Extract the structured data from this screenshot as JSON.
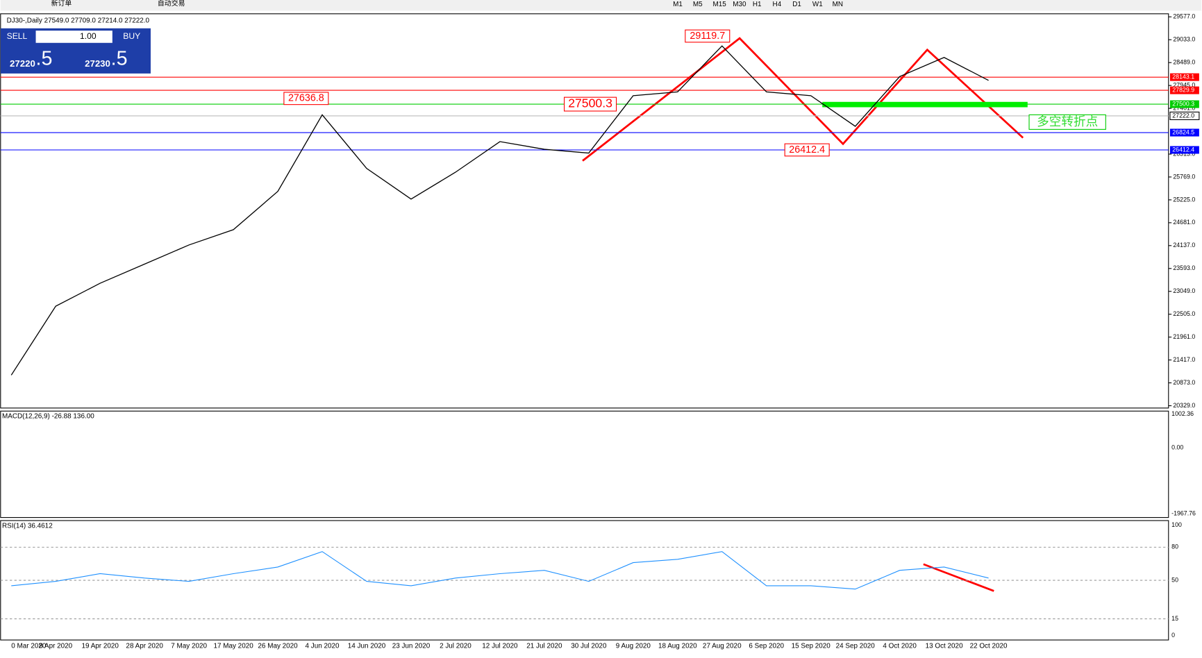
{
  "toolbar": {
    "new_order": "新订单",
    "auto_trading": "自动交易",
    "timeframes": [
      "M1",
      "M5",
      "M15",
      "M30",
      "H1",
      "H4",
      "D1",
      "W1",
      "MN"
    ]
  },
  "chart_header": "DJ30-,Daily  27549.0 27709.0 27214.0 27222.0",
  "trade_panel": {
    "sell": "SELL",
    "buy": "BUY",
    "lots": "1.00",
    "sell_price": "27220",
    "sell_pip": ".5",
    "buy_price": "27230",
    "buy_pip": ".5"
  },
  "price_chart": {
    "ylim": [
      20329,
      29577
    ],
    "yticks": [
      {
        "value": 29577,
        "label": "29577.0"
      },
      {
        "value": 29033,
        "label": "29033.0"
      },
      {
        "value": 28489,
        "label": "28489.0"
      },
      {
        "value": 27945,
        "label": "27945.0"
      },
      {
        "value": 27401,
        "label": "27401.0"
      },
      {
        "value": 26313,
        "label": "26313.0"
      },
      {
        "value": 25769,
        "label": "25769.0"
      },
      {
        "value": 25225,
        "label": "25225.0"
      },
      {
        "value": 24681,
        "label": "24681.0"
      },
      {
        "value": 24137,
        "label": "24137.0"
      },
      {
        "value": 23593,
        "label": "23593.0"
      },
      {
        "value": 23049,
        "label": "23049.0"
      },
      {
        "value": 22505,
        "label": "22505.0"
      },
      {
        "value": 21961,
        "label": "21961.0"
      },
      {
        "value": 21417,
        "label": "21417.0"
      },
      {
        "value": 20873,
        "label": "20873.0"
      },
      {
        "value": 20329,
        "label": "20329.0"
      }
    ],
    "levels": [
      {
        "value": 28143.1,
        "color": "#ff0000"
      },
      {
        "value": 27829.9,
        "color": "#ff0000"
      },
      {
        "value": 27500.3,
        "color": "#00cc00"
      },
      {
        "value": 26824.5,
        "color": "#0000ff"
      },
      {
        "value": 26412.4,
        "color": "#0000ff"
      }
    ],
    "current": {
      "value": 27222,
      "label": "27222.0"
    },
    "dates": [
      "0 Mar 2020",
      "8 Apr 2020",
      "19 Apr 2020",
      "28 Apr 2020",
      "7 May 2020",
      "17 May 2020",
      "26 May 2020",
      "4 Jun 2020",
      "14 Jun 2020",
      "23 Jun 2020",
      "2 Jul 2020",
      "12 Jul 2020",
      "21 Jul 2020",
      "30 Jul 2020",
      "9 Aug 2020",
      "18 Aug 2020",
      "27 Aug 2020",
      "6 Sep 2020",
      "15 Sep 2020",
      "24 Sep 2020",
      "4 Oct 2020",
      "13 Oct 2020",
      "22 Oct 2020"
    ],
    "closes": [
      21057,
      22696,
      23242,
      23697,
      24152,
      24516,
      25426,
      27247,
      25973,
      25244,
      25882,
      26610,
      26428,
      26337,
      27702,
      27793,
      28885,
      27793,
      27702,
      26974,
      28157,
      28612,
      28066
    ],
    "annotations": [
      29119.7,
      27636.8,
      27500.3,
      26412.4
    ],
    "note": "多空转折点"
  },
  "macd": {
    "label": "MACD(12,26,9) -26.88 136.00",
    "ticks": [
      {
        "value": 1002.36,
        "label": "1002.36"
      },
      {
        "value": 0,
        "label": "0.00"
      },
      {
        "value": -1967.76,
        "label": "-1967.76"
      }
    ]
  },
  "rsi": {
    "label": "RSI(14) 36.4612",
    "ylim": [
      0,
      100
    ],
    "ticks": [
      100,
      80,
      50,
      15,
      0
    ],
    "values": [
      45,
      49,
      56,
      52,
      49,
      56,
      62,
      76,
      49,
      45,
      52,
      56,
      59,
      49,
      66,
      69,
      76,
      45,
      45,
      42,
      59,
      62,
      52
    ]
  }
}
